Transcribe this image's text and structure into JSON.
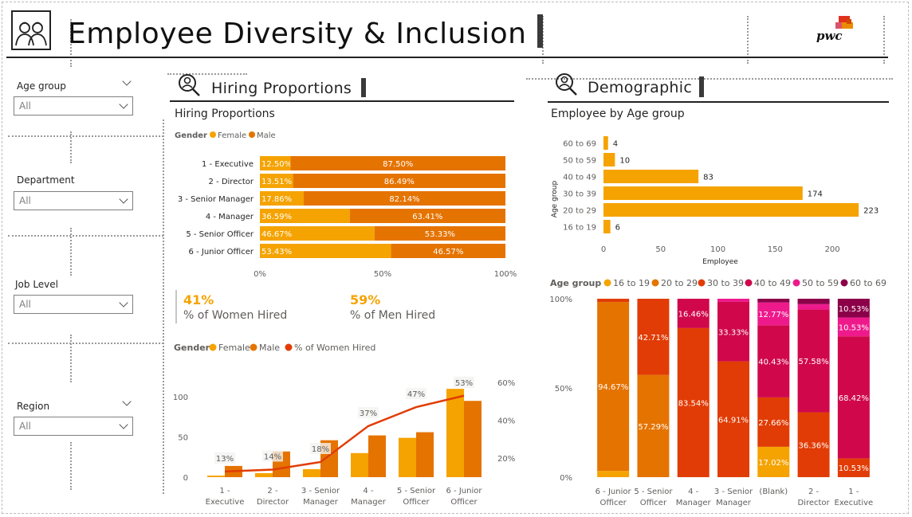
{
  "header": {
    "title": "Employee Diversity & Inclusion",
    "logo_text": "pwc"
  },
  "colors": {
    "female": "#f5a300",
    "male": "#e57300",
    "women_line": "#e13c05",
    "age_16_19": "#f5a300",
    "age_20_29": "#e57300",
    "age_30_39": "#e13c05",
    "age_40_49": "#d0084b",
    "age_50_59": "#ee1a8c",
    "age_60_69": "#8b0049"
  },
  "filters": [
    {
      "label": "Age group",
      "value": "All"
    },
    {
      "label": "Department",
      "value": "All"
    },
    {
      "label": "Job Level",
      "value": "All"
    },
    {
      "label": "Region",
      "value": "All"
    }
  ],
  "hiring": {
    "section_title": "Hiring Proportions",
    "visual_title": "Hiring Proportions",
    "legend_title": "Gender",
    "legend": [
      "Female",
      "Male"
    ],
    "kpis": [
      {
        "value": "41%",
        "label": "% of Women Hired"
      },
      {
        "value": "59%",
        "label": "% of Men Hired"
      }
    ],
    "combo_legend": [
      "Female",
      "Male",
      "% of Women Hired"
    ]
  },
  "demographic": {
    "section_title": "Demographic",
    "visual_title": "Employee by Age group",
    "stack_legend_title": "Age group"
  },
  "chart_data": [
    {
      "type": "bar",
      "orientation": "horizontal-100%-stacked",
      "categories": [
        "1 - Executive",
        "2 - Director",
        "3 - Senior Manager",
        "4 - Manager",
        "5 - Senior Officer",
        "6 - Junior Officer"
      ],
      "series": [
        {
          "name": "Female",
          "values": [
            12.5,
            13.51,
            17.86,
            36.59,
            46.67,
            53.43
          ],
          "labels": [
            "12.50%",
            "13.51%",
            "17.86%",
            "36.59%",
            "46.67%",
            "53.43%"
          ]
        },
        {
          "name": "Male",
          "values": [
            87.5,
            86.49,
            82.14,
            63.41,
            53.33,
            46.57
          ],
          "labels": [
            "87.50%",
            "86.49%",
            "82.14%",
            "63.41%",
            "53.33%",
            "46.57%"
          ]
        }
      ],
      "xticks": [
        "0%",
        "50%",
        "100%"
      ]
    },
    {
      "type": "bar",
      "orientation": "vertical-clustered-with-line",
      "categories": [
        "1 - Executive",
        "2 - Director",
        "3 - Senior Manager",
        "4 - Manager",
        "5 - Senior Officer",
        "6 - Junior Officer"
      ],
      "category_lines": [
        [
          "1 -",
          "Executive"
        ],
        [
          "2 -",
          "Director"
        ],
        [
          "3 - Senior",
          "Manager"
        ],
        [
          "4 -",
          "Manager"
        ],
        [
          "5 - Senior",
          "Officer"
        ],
        [
          "6 - Junior",
          "Officer"
        ]
      ],
      "series": [
        {
          "name": "Female",
          "values": [
            2,
            5,
            10,
            30,
            49,
            110
          ]
        },
        {
          "name": "Male",
          "values": [
            14,
            32,
            46,
            52,
            56,
            95
          ]
        }
      ],
      "line": {
        "name": "% of Women Hired",
        "values": [
          13,
          14,
          18,
          37,
          47,
          53
        ],
        "labels": [
          "13%",
          "14%",
          "18%",
          "37%",
          "47%",
          "53%"
        ]
      },
      "ylim": [
        0,
        125
      ],
      "yticks": [
        "0",
        "50",
        "100"
      ],
      "y2lim": [
        10,
        63
      ],
      "y2ticks": [
        "20%",
        "40%",
        "60%"
      ]
    },
    {
      "type": "bar",
      "orientation": "horizontal",
      "categories": [
        "60 to 69",
        "50 to 59",
        "40 to 49",
        "30 to 39",
        "20 to 29",
        "16 to 19"
      ],
      "values": [
        4,
        10,
        83,
        174,
        223,
        6
      ],
      "xlabel": "Employee",
      "ylabel": "Age group",
      "xlim": [
        0,
        225
      ],
      "xticks": [
        "0",
        "50",
        "100",
        "150",
        "200"
      ]
    },
    {
      "type": "bar",
      "orientation": "vertical-100%-stacked",
      "categories": [
        "6 - Junior Officer",
        "5 - Senior Officer",
        "4 - Manager",
        "3 - Senior Manager",
        "(Blank)",
        "2 - Director",
        "1 - Executive"
      ],
      "category_lines": [
        [
          "6 - Junior",
          "Officer"
        ],
        [
          "5 - Senior",
          "Officer"
        ],
        [
          "4 -",
          "Manager"
        ],
        [
          "3 - Senior",
          "Manager"
        ],
        [
          "(Blank)",
          ""
        ],
        [
          "2 -",
          "Director"
        ],
        [
          "1 -",
          "Executive"
        ]
      ],
      "series": [
        {
          "name": "16 to 19",
          "values": [
            3.5,
            0,
            0,
            0,
            17.02,
            0,
            0
          ],
          "labels": [
            "",
            "",
            "",
            "",
            "17.02%",
            "",
            ""
          ]
        },
        {
          "name": "20 to 29",
          "values": [
            94.67,
            57.29,
            0,
            0,
            0,
            0,
            0
          ],
          "labels": [
            "94.67%",
            "57.29%",
            "",
            "",
            "",
            "",
            ""
          ]
        },
        {
          "name": "30 to 39",
          "values": [
            1.83,
            42.71,
            83.54,
            64.91,
            27.66,
            36.36,
            10.53
          ],
          "labels": [
            "",
            "42.71%",
            "83.54%",
            "64.91%",
            "27.66%",
            "36.36%",
            "10.53%"
          ]
        },
        {
          "name": "40 to 49",
          "values": [
            0,
            0,
            16.46,
            33.33,
            40.43,
            57.58,
            68.42
          ],
          "labels": [
            "",
            "",
            "16.46%",
            "33.33%",
            "40.43%",
            "57.58%",
            "68.42%"
          ]
        },
        {
          "name": "50 to 59",
          "values": [
            0,
            0,
            0,
            1.76,
            12.77,
            3.03,
            10.53
          ],
          "labels": [
            "",
            "",
            "",
            "",
            "12.77%",
            "",
            "10.53%"
          ]
        },
        {
          "name": "60 to 69",
          "values": [
            0,
            0,
            0,
            0,
            2.12,
            3.03,
            10.52
          ],
          "labels": [
            "",
            "",
            "",
            "",
            "",
            "",
            "10.53%"
          ]
        }
      ],
      "yticks": [
        "0%",
        "50%",
        "100%"
      ]
    }
  ]
}
